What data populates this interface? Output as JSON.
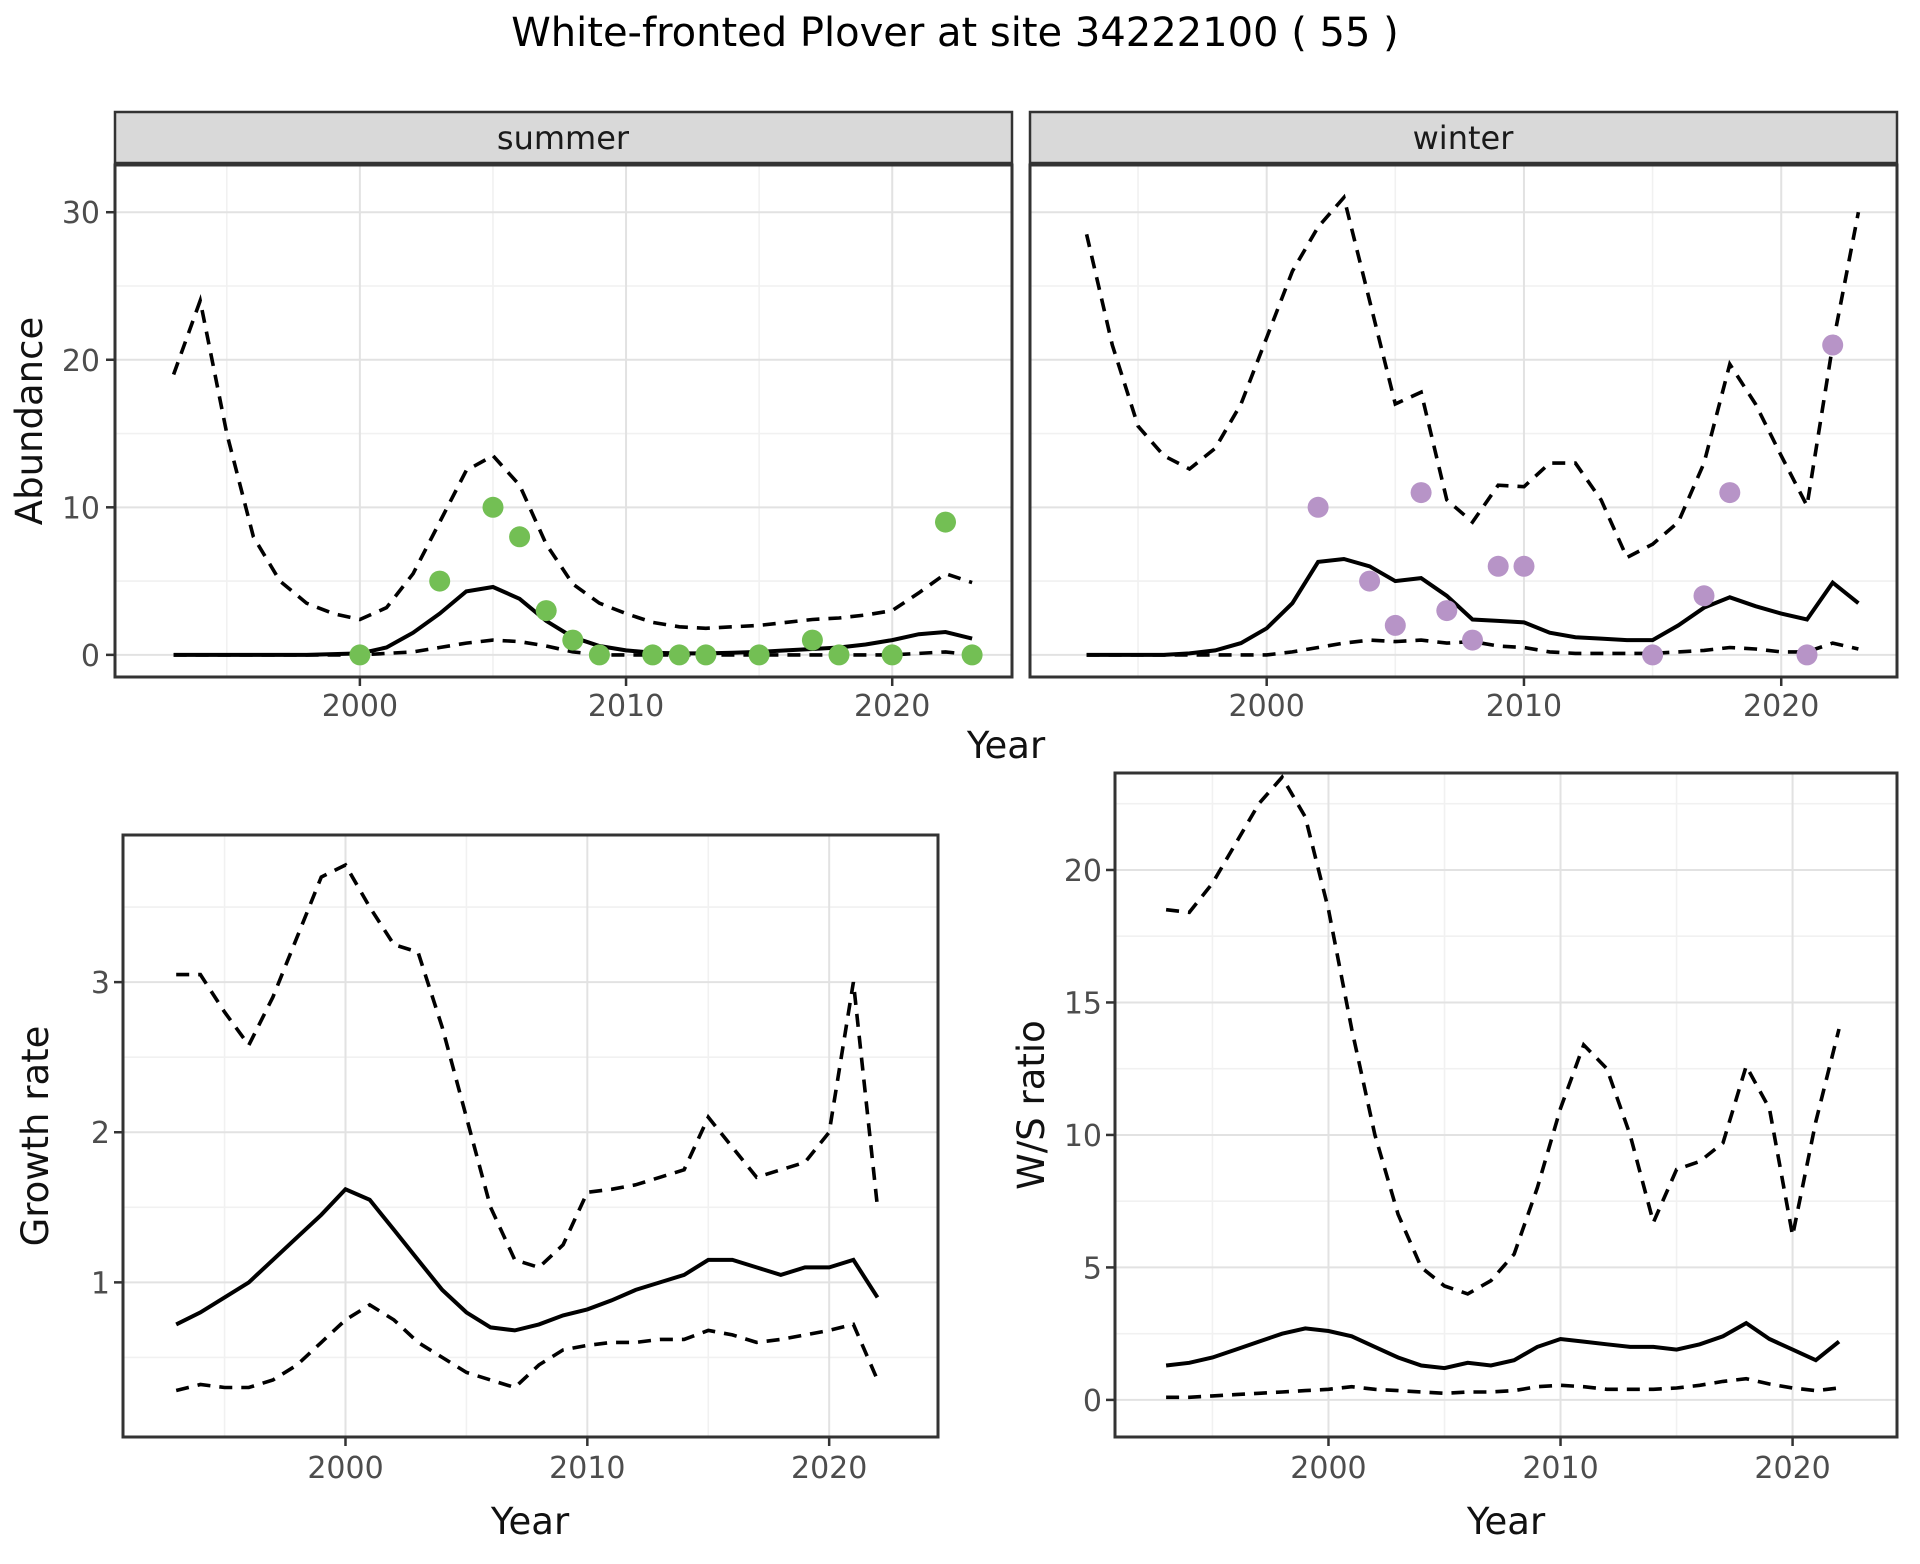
{
  "title": "White-fronted Plover at site 34222100 ( 55 )",
  "colors": {
    "summer_points": "#73bf54",
    "winter_points": "#b794c7",
    "line": "#000000",
    "strip_bg": "#d9d9d9",
    "panel_border": "#333333",
    "grid_major": "#e2e2e2",
    "grid_minor": "#f1f1f1",
    "axis_text": "#4d4d4d"
  },
  "chart_data": [
    {
      "type": "line",
      "title": "Abundance by season (dashed = 95% CI, solid = model median, dots = observed counts)",
      "xlabel": "Year",
      "ylabel": "Abundance",
      "xticks": [
        2000,
        2010,
        2020
      ],
      "yticks": [
        0,
        10,
        20,
        30
      ],
      "xlim": [
        1991,
        2024.5
      ],
      "ylim": [
        -1.5,
        33.2
      ],
      "x": [
        1993,
        1994,
        1995,
        1996,
        1997,
        1998,
        1999,
        2000,
        2001,
        2002,
        2003,
        2004,
        2005,
        2006,
        2007,
        2008,
        2009,
        2010,
        2011,
        2012,
        2013,
        2014,
        2015,
        2016,
        2017,
        2018,
        2019,
        2020,
        2021,
        2022,
        2023
      ],
      "facets": [
        {
          "label": "summer",
          "series": [
            {
              "name": "upper_ci",
              "style": "dashed",
              "values": [
                19,
                24,
                15,
                8,
                5,
                3.5,
                2.8,
                2.4,
                3.2,
                5.5,
                9,
                12.5,
                13.5,
                11.5,
                7.5,
                4.8,
                3.5,
                2.8,
                2.2,
                1.9,
                1.8,
                1.9,
                2.0,
                2.2,
                2.4,
                2.5,
                2.7,
                3.0,
                4.2,
                5.5,
                4.9
              ]
            },
            {
              "name": "median",
              "style": "solid",
              "values": [
                0,
                0,
                0,
                0,
                0,
                0,
                0.05,
                0.1,
                0.5,
                1.5,
                2.8,
                4.3,
                4.6,
                3.8,
                2.3,
                1.2,
                0.6,
                0.3,
                0.15,
                0.1,
                0.1,
                0.15,
                0.2,
                0.3,
                0.4,
                0.5,
                0.7,
                1.0,
                1.4,
                1.55,
                1.1
              ]
            },
            {
              "name": "lower_ci",
              "style": "dashed",
              "values": [
                0,
                0,
                0,
                0,
                0,
                0,
                0,
                0,
                0.1,
                0.2,
                0.5,
                0.8,
                1.0,
                0.9,
                0.6,
                0.2,
                0,
                0,
                0,
                0,
                0,
                0,
                0,
                0,
                0,
                0,
                0,
                0,
                0.1,
                0.2,
                0
              ]
            }
          ],
          "points": {
            "name": "observed",
            "color_key": "summer_points",
            "xy": [
              [
                2000,
                0
              ],
              [
                2003,
                5
              ],
              [
                2005,
                10
              ],
              [
                2006,
                8
              ],
              [
                2007,
                3
              ],
              [
                2008,
                1
              ],
              [
                2009,
                0
              ],
              [
                2011,
                0
              ],
              [
                2012,
                0
              ],
              [
                2013,
                0
              ],
              [
                2015,
                0
              ],
              [
                2017,
                1
              ],
              [
                2018,
                0
              ],
              [
                2020,
                0
              ],
              [
                2022,
                9
              ],
              [
                2023,
                0
              ]
            ]
          }
        },
        {
          "label": "winter",
          "series": [
            {
              "name": "upper_ci",
              "style": "dashed",
              "values": [
                28.5,
                21,
                15.5,
                13.5,
                12.6,
                14,
                17,
                21.5,
                26,
                29,
                31,
                24,
                17,
                17.8,
                10.5,
                9,
                11.5,
                11.4,
                13,
                13,
                10.5,
                6.6,
                7.5,
                9,
                13,
                19.7,
                17,
                13.5,
                10.1,
                21,
                30
              ]
            },
            {
              "name": "median",
              "style": "solid",
              "values": [
                0,
                0,
                0,
                0,
                0.1,
                0.3,
                0.8,
                1.8,
                3.5,
                6.3,
                6.5,
                6.0,
                5.0,
                5.2,
                4.0,
                2.4,
                2.3,
                2.2,
                1.5,
                1.2,
                1.1,
                1.0,
                1.0,
                2.0,
                3.2,
                3.9,
                3.3,
                2.8,
                2.4,
                4.9,
                3.5
              ]
            },
            {
              "name": "lower_ci",
              "style": "dashed",
              "values": [
                0,
                0,
                0,
                0,
                0,
                0,
                0,
                0,
                0.2,
                0.5,
                0.8,
                1.0,
                0.9,
                1.0,
                0.8,
                0.9,
                0.6,
                0.5,
                0.2,
                0.1,
                0.1,
                0.1,
                0.1,
                0.2,
                0.3,
                0.5,
                0.4,
                0.2,
                0.2,
                0.8,
                0.4
              ]
            }
          ],
          "points": {
            "name": "observed",
            "color_key": "winter_points",
            "xy": [
              [
                2002,
                10
              ],
              [
                2004,
                5
              ],
              [
                2005,
                2
              ],
              [
                2006,
                11
              ],
              [
                2007,
                3
              ],
              [
                2008,
                1
              ],
              [
                2009,
                6
              ],
              [
                2010,
                6
              ],
              [
                2015,
                0
              ],
              [
                2017,
                4
              ],
              [
                2018,
                11
              ],
              [
                2021,
                0
              ],
              [
                2022,
                21
              ]
            ]
          }
        }
      ]
    },
    {
      "type": "line",
      "title": "Growth rate (dashed = 95% CI, solid = median)",
      "xlabel": "Year",
      "ylabel": "Growth rate",
      "xticks": [
        2000,
        2010,
        2020
      ],
      "yticks": [
        1,
        2,
        3
      ],
      "xlim": [
        1991,
        2024.5
      ],
      "ylim": [
        -0.03,
        3.98
      ],
      "x": [
        1993,
        1994,
        1995,
        1996,
        1997,
        1998,
        1999,
        2000,
        2001,
        2002,
        2003,
        2004,
        2005,
        2006,
        2007,
        2008,
        2009,
        2010,
        2011,
        2012,
        2013,
        2014,
        2015,
        2016,
        2017,
        2018,
        2019,
        2020,
        2021,
        2022
      ],
      "series": [
        {
          "name": "upper_ci",
          "style": "dashed",
          "values": [
            3.05,
            3.05,
            2.8,
            2.58,
            2.9,
            3.3,
            3.7,
            3.78,
            3.5,
            3.25,
            3.2,
            2.7,
            2.1,
            1.5,
            1.15,
            1.1,
            1.25,
            1.6,
            1.62,
            1.65,
            1.7,
            1.75,
            2.1,
            1.9,
            1.7,
            1.75,
            1.8,
            2.0,
            3.0,
            1.5
          ]
        },
        {
          "name": "median",
          "style": "solid",
          "values": [
            0.72,
            0.8,
            0.9,
            1.0,
            1.15,
            1.3,
            1.45,
            1.62,
            1.55,
            1.35,
            1.15,
            0.95,
            0.8,
            0.7,
            0.68,
            0.72,
            0.78,
            0.82,
            0.88,
            0.95,
            1.0,
            1.05,
            1.15,
            1.15,
            1.1,
            1.05,
            1.1,
            1.1,
            1.15,
            0.9
          ]
        },
        {
          "name": "lower_ci",
          "style": "dashed",
          "values": [
            0.28,
            0.32,
            0.3,
            0.3,
            0.35,
            0.45,
            0.6,
            0.75,
            0.85,
            0.75,
            0.6,
            0.5,
            0.4,
            0.35,
            0.3,
            0.45,
            0.55,
            0.58,
            0.6,
            0.6,
            0.62,
            0.62,
            0.68,
            0.65,
            0.6,
            0.62,
            0.65,
            0.68,
            0.72,
            0.35
          ]
        }
      ]
    },
    {
      "type": "line",
      "title": "Winter/Summer ratio (dashed = 95% CI, solid = median)",
      "xlabel": "Year",
      "ylabel": "W/S ratio",
      "xticks": [
        2000,
        2010,
        2020
      ],
      "yticks": [
        0,
        5,
        10,
        15,
        20
      ],
      "xlim": [
        1991,
        2024.5
      ],
      "ylim": [
        -1.4,
        23.66
      ],
      "x": [
        1993,
        1994,
        1995,
        1996,
        1997,
        1998,
        1999,
        2000,
        2001,
        2002,
        2003,
        2004,
        2005,
        2006,
        2007,
        2008,
        2009,
        2010,
        2011,
        2012,
        2013,
        2014,
        2015,
        2016,
        2017,
        2018,
        2019,
        2020,
        2021,
        2022
      ],
      "series": [
        {
          "name": "upper_ci",
          "style": "dashed",
          "values": [
            18.5,
            18.4,
            19.5,
            21,
            22.5,
            23.5,
            22,
            18.5,
            14,
            10,
            7,
            5,
            4.3,
            4,
            4.5,
            5.5,
            8,
            11,
            13.4,
            12.5,
            10,
            6.7,
            8.7,
            9,
            9.7,
            12.6,
            11,
            6.2,
            10.5,
            14
          ]
        },
        {
          "name": "median",
          "style": "solid",
          "values": [
            1.3,
            1.4,
            1.6,
            1.9,
            2.2,
            2.5,
            2.7,
            2.6,
            2.4,
            2.0,
            1.6,
            1.3,
            1.2,
            1.4,
            1.3,
            1.5,
            2.0,
            2.3,
            2.2,
            2.1,
            2.0,
            2.0,
            1.9,
            2.1,
            2.4,
            2.9,
            2.3,
            1.9,
            1.5,
            2.2
          ]
        },
        {
          "name": "lower_ci",
          "style": "dashed",
          "values": [
            0.1,
            0.1,
            0.15,
            0.2,
            0.25,
            0.3,
            0.35,
            0.4,
            0.5,
            0.4,
            0.35,
            0.3,
            0.25,
            0.3,
            0.3,
            0.35,
            0.5,
            0.55,
            0.5,
            0.4,
            0.4,
            0.4,
            0.45,
            0.55,
            0.7,
            0.8,
            0.6,
            0.45,
            0.35,
            0.45
          ]
        }
      ]
    }
  ]
}
